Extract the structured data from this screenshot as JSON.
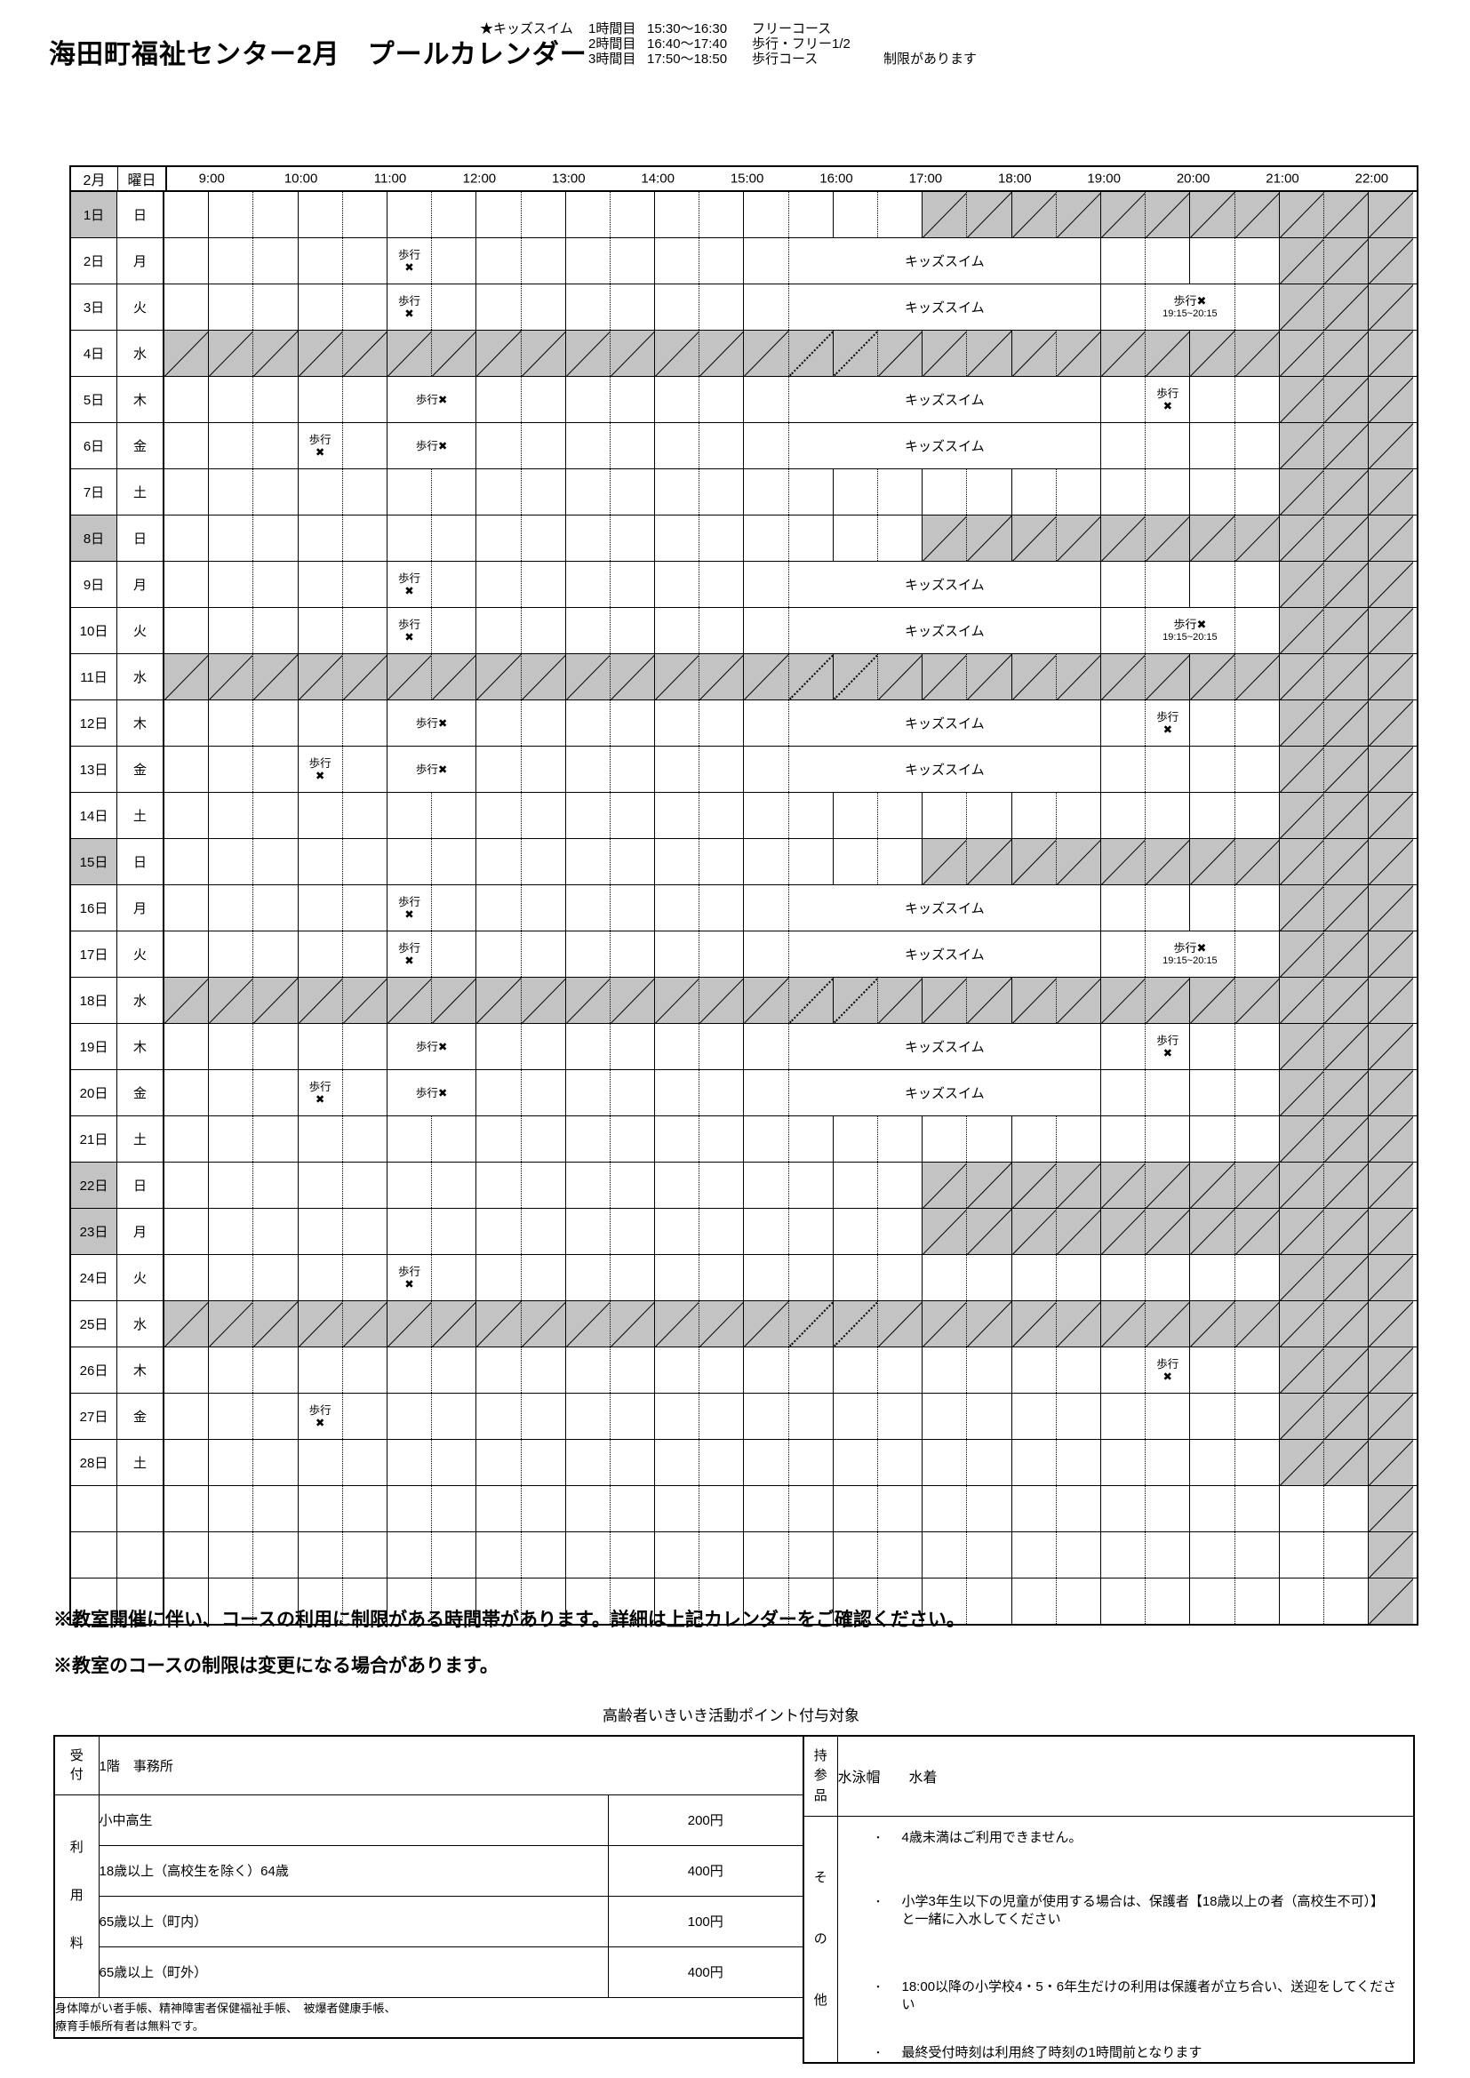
{
  "page": {
    "title": "海田町福祉センター2月　プールカレンダー"
  },
  "legend": {
    "lines": [
      {
        "prefix": "★キッズスイム",
        "period": "1時間目",
        "time": "15:30～16:30",
        "course": "フリーコース",
        "note": ""
      },
      {
        "prefix": "",
        "period": "2時間目",
        "time": "16:40～17:40",
        "course": "歩行・フリー1/2",
        "note": ""
      },
      {
        "prefix": "",
        "period": "3時間目",
        "time": "17:50～18:50",
        "course": "歩行コース",
        "note": "制限があります"
      }
    ]
  },
  "calendar": {
    "month_header": "2月",
    "weekday_header": "曜日",
    "time_labels": [
      "9:00",
      "10:00",
      "11:00",
      "12:00",
      "13:00",
      "14:00",
      "15:00",
      "16:00",
      "17:00",
      "18:00",
      "19:00",
      "20:00",
      "21:00",
      "22:00"
    ],
    "grid_start": "8:30",
    "grid_end": "22:30",
    "patterns": {
      "sunday": [
        {
          "type": "open",
          "count": 17
        },
        {
          "type": "closed",
          "count": 11
        }
      ],
      "monday": [
        {
          "type": "open",
          "count": 5
        },
        {
          "type": "note",
          "count": 1,
          "lines": [
            "歩行",
            "✖"
          ]
        },
        {
          "type": "open",
          "count": 8
        },
        {
          "type": "kids",
          "count": 7,
          "lines": [
            "キッズスイム"
          ]
        },
        {
          "type": "open",
          "count": 4
        },
        {
          "type": "closed",
          "count": 3
        }
      ],
      "tuesday": [
        {
          "type": "open",
          "count": 5
        },
        {
          "type": "note",
          "count": 1,
          "lines": [
            "歩行",
            "✖"
          ]
        },
        {
          "type": "open",
          "count": 8
        },
        {
          "type": "kids",
          "count": 7,
          "lines": [
            "キッズスイム"
          ]
        },
        {
          "type": "open",
          "count": 1
        },
        {
          "type": "note",
          "count": 2,
          "timed": true,
          "lines": [
            "歩行✖",
            "19:15~20:15"
          ]
        },
        {
          "type": "open",
          "count": 1
        },
        {
          "type": "closed",
          "count": 3
        }
      ],
      "wednesday": [
        {
          "type": "closed",
          "count": 14
        },
        {
          "type": "closed_dotted",
          "count": 2
        },
        {
          "type": "closed",
          "count": 12
        }
      ],
      "thursday": [
        {
          "type": "open",
          "count": 5
        },
        {
          "type": "note",
          "count": 2,
          "lines": [
            "歩行✖"
          ]
        },
        {
          "type": "open",
          "count": 7
        },
        {
          "type": "kids",
          "count": 7,
          "lines": [
            "キッズスイム"
          ]
        },
        {
          "type": "open",
          "count": 1
        },
        {
          "type": "note",
          "count": 1,
          "lines": [
            "歩行",
            "✖"
          ]
        },
        {
          "type": "open",
          "count": 2
        },
        {
          "type": "closed",
          "count": 3
        }
      ],
      "friday": [
        {
          "type": "open",
          "count": 3
        },
        {
          "type": "note",
          "count": 1,
          "lines": [
            "歩行",
            "✖"
          ]
        },
        {
          "type": "open",
          "count": 1
        },
        {
          "type": "note",
          "count": 2,
          "lines": [
            "歩行✖"
          ]
        },
        {
          "type": "open",
          "count": 7
        },
        {
          "type": "kids",
          "count": 7,
          "lines": [
            "キッズスイム"
          ]
        },
        {
          "type": "open",
          "count": 4
        },
        {
          "type": "closed",
          "count": 3
        }
      ],
      "saturday": [
        {
          "type": "open",
          "count": 25
        },
        {
          "type": "closed",
          "count": 3
        }
      ],
      "tuesday_24": [
        {
          "type": "open",
          "count": 5
        },
        {
          "type": "note",
          "count": 1,
          "lines": [
            "歩行",
            "✖"
          ]
        },
        {
          "type": "open",
          "count": 19
        },
        {
          "type": "closed",
          "count": 3
        }
      ],
      "thursday_26": [
        {
          "type": "open",
          "count": 22
        },
        {
          "type": "note",
          "count": 1,
          "lines": [
            "歩行",
            "✖"
          ]
        },
        {
          "type": "open",
          "count": 2
        },
        {
          "type": "closed",
          "count": 3
        }
      ],
      "friday_27": [
        {
          "type": "open",
          "count": 3
        },
        {
          "type": "note",
          "count": 1,
          "lines": [
            "歩行",
            "✖"
          ]
        },
        {
          "type": "open",
          "count": 21
        },
        {
          "type": "closed",
          "count": 3
        }
      ],
      "empty": [
        {
          "type": "open",
          "count": 27
        },
        {
          "type": "closed",
          "count": 1
        }
      ]
    },
    "rows": [
      {
        "day": "1日",
        "weekday": "日",
        "pattern": "sunday",
        "shaded": true
      },
      {
        "day": "2日",
        "weekday": "月",
        "pattern": "monday",
        "shaded": false
      },
      {
        "day": "3日",
        "weekday": "火",
        "pattern": "tuesday",
        "shaded": false
      },
      {
        "day": "4日",
        "weekday": "水",
        "pattern": "wednesday",
        "shaded": false
      },
      {
        "day": "5日",
        "weekday": "木",
        "pattern": "thursday",
        "shaded": false
      },
      {
        "day": "6日",
        "weekday": "金",
        "pattern": "friday",
        "shaded": false
      },
      {
        "day": "7日",
        "weekday": "土",
        "pattern": "saturday",
        "shaded": false
      },
      {
        "day": "8日",
        "weekday": "日",
        "pattern": "sunday",
        "shaded": true
      },
      {
        "day": "9日",
        "weekday": "月",
        "pattern": "monday",
        "shaded": false
      },
      {
        "day": "10日",
        "weekday": "火",
        "pattern": "tuesday",
        "shaded": false
      },
      {
        "day": "11日",
        "weekday": "水",
        "pattern": "wednesday",
        "shaded": false
      },
      {
        "day": "12日",
        "weekday": "木",
        "pattern": "thursday",
        "shaded": false
      },
      {
        "day": "13日",
        "weekday": "金",
        "pattern": "friday",
        "shaded": false
      },
      {
        "day": "14日",
        "weekday": "土",
        "pattern": "saturday",
        "shaded": false
      },
      {
        "day": "15日",
        "weekday": "日",
        "pattern": "sunday",
        "shaded": true
      },
      {
        "day": "16日",
        "weekday": "月",
        "pattern": "monday",
        "shaded": false
      },
      {
        "day": "17日",
        "weekday": "火",
        "pattern": "tuesday",
        "shaded": false
      },
      {
        "day": "18日",
        "weekday": "水",
        "pattern": "wednesday",
        "shaded": false
      },
      {
        "day": "19日",
        "weekday": "木",
        "pattern": "thursday",
        "shaded": false
      },
      {
        "day": "20日",
        "weekday": "金",
        "pattern": "friday",
        "shaded": false
      },
      {
        "day": "21日",
        "weekday": "土",
        "pattern": "saturday",
        "shaded": false
      },
      {
        "day": "22日",
        "weekday": "日",
        "pattern": "sunday",
        "shaded": true
      },
      {
        "day": "23日",
        "weekday": "月",
        "pattern": "sunday",
        "shaded": true
      },
      {
        "day": "24日",
        "weekday": "火",
        "pattern": "tuesday_24",
        "shaded": false
      },
      {
        "day": "25日",
        "weekday": "水",
        "pattern": "wednesday",
        "shaded": false
      },
      {
        "day": "26日",
        "weekday": "木",
        "pattern": "thursday_26",
        "shaded": false
      },
      {
        "day": "27日",
        "weekday": "金",
        "pattern": "friday_27",
        "shaded": false
      },
      {
        "day": "28日",
        "weekday": "土",
        "pattern": "saturday",
        "shaded": false
      },
      {
        "day": "",
        "weekday": "",
        "pattern": "empty",
        "shaded": false
      },
      {
        "day": "",
        "weekday": "",
        "pattern": "empty",
        "shaded": false
      },
      {
        "day": "",
        "weekday": "",
        "pattern": "empty",
        "shaded": false
      }
    ]
  },
  "notes": {
    "restriction": "※教室開催に伴い、コースの利用に制限がある時間帯があります。詳細は上記カレンダーをご確認ください。",
    "change": "※教室のコースの制限は変更になる場合があります。",
    "point": "高齢者いきいき活動ポイント付与対象"
  },
  "reception": {
    "label": "受付",
    "value": "1階　事務所"
  },
  "fees": {
    "label": "利用料",
    "rows": [
      {
        "label": "小中高生",
        "price": "200円"
      },
      {
        "label": "18歳以上（高校生を除く）64歳",
        "price": "400円"
      },
      {
        "label": "65歳以上（町内）",
        "price": "100円"
      },
      {
        "label": "65歳以上（町外）",
        "price": "400円"
      }
    ],
    "free_note_line1": "身体障がい者手帳、精神障害者保健福祉手帳、　被爆者健康手帳、",
    "free_note_line2": "療育手帳所有者は無料です。"
  },
  "bring": {
    "label": "持参品",
    "value": "水泳帽　　水着"
  },
  "other": {
    "label": "その他",
    "items": [
      "4歳未満はご利用できません。",
      "小学3年生以下の児童が使用する場合は、保護者【18歳以上の者（高校生不可）】と一緒に入水してください",
      "18:00以降の小学校4・5・6年生だけの利用は保護者が立ち合い、送迎をしてください",
      "最終受付時刻は利用終了時刻の1時間前となります"
    ]
  },
  "colors": {
    "hatch_gray": "#c3c3c3",
    "line_black": "#000000"
  }
}
